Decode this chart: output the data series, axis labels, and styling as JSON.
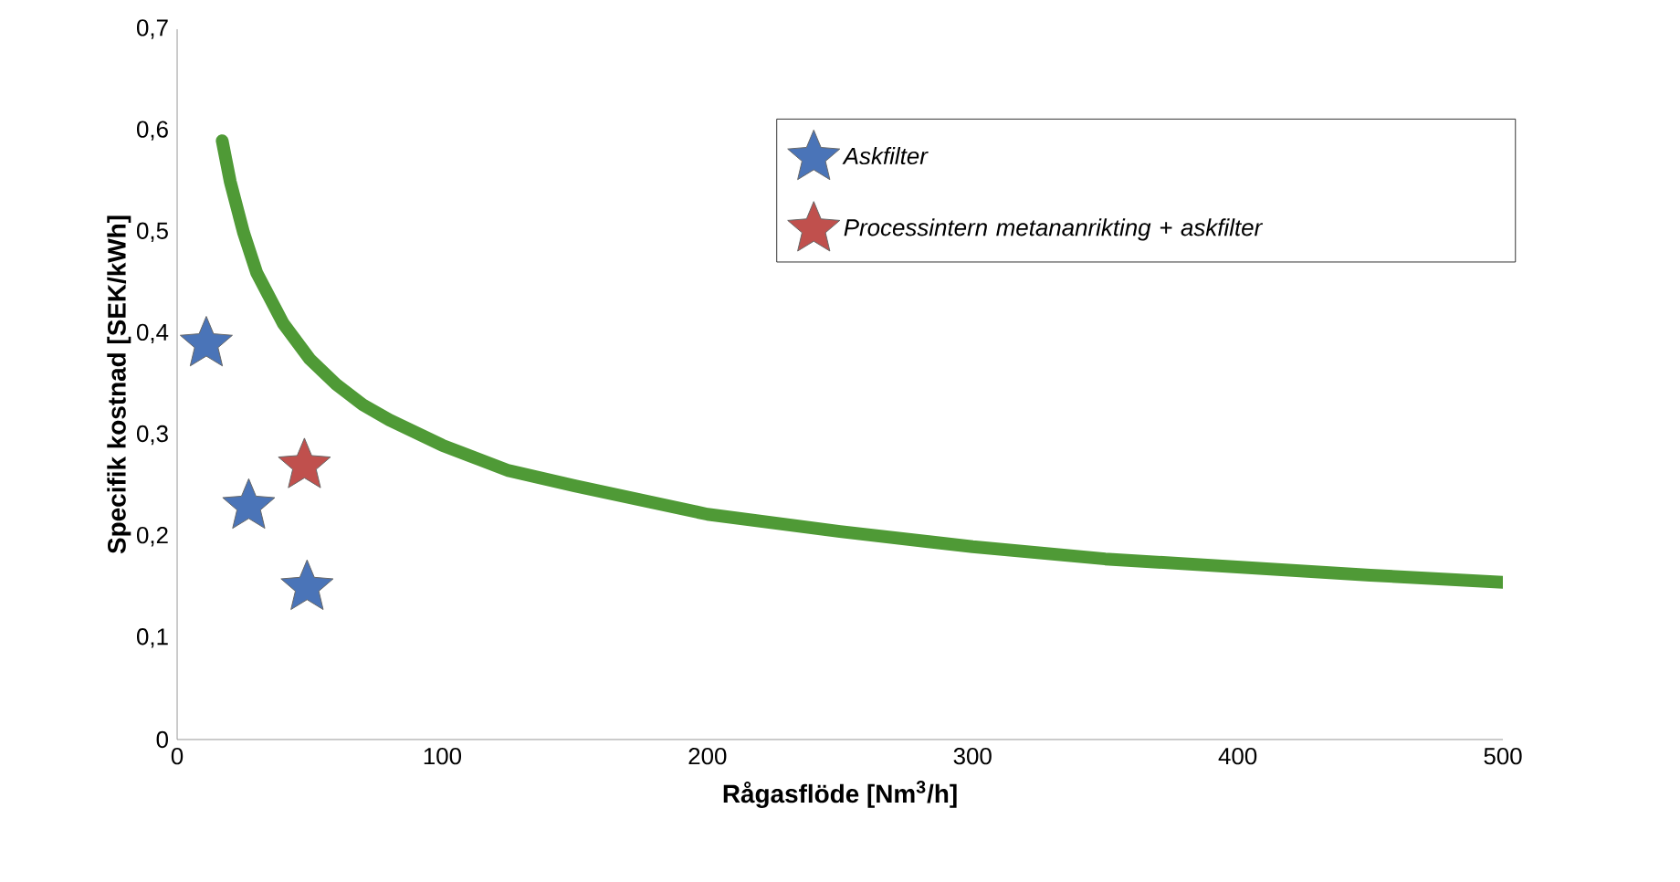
{
  "chart_data": {
    "type": "scatter",
    "xlabel": "Rågasflöde [Nm$^{3}$/h]",
    "ylabel": "Specifik kostnad [SEK/kWh]",
    "xlim": [
      0,
      500
    ],
    "xticks": [
      0,
      100,
      200,
      300,
      400,
      500
    ],
    "ylim": [
      0,
      0.7
    ],
    "yticks": [
      0,
      {
        "value": 0.1,
        "label": "0,1"
      },
      {
        "value": 0.2,
        "label": "0,2"
      },
      {
        "value": 0.3,
        "label": "0,3"
      },
      {
        "value": 0.4,
        "label": "0,4"
      },
      {
        "value": 0.5,
        "label": "0,5"
      },
      {
        "value": 0.6,
        "label": "0,6"
      },
      {
        "value": 0.7,
        "label": "0,7"
      }
    ],
    "grid": false,
    "legend": "top right",
    "marker": "star",
    "series": [
      {
        "type": "line",
        "marker": "none",
        "color": "#4f9a36",
        "x": [
          17,
          20,
          25,
          30,
          40,
          50,
          60,
          70,
          80,
          100,
          125,
          150,
          200,
          250,
          300,
          350,
          400,
          450,
          500
        ],
        "values": [
          0.59,
          0.55,
          0.5,
          0.46,
          0.41,
          0.375,
          0.35,
          0.33,
          0.315,
          0.29,
          0.265,
          0.25,
          0.222,
          0.205,
          0.19,
          0.178,
          0.17,
          0.162,
          0.155
        ]
      },
      {
        "name": "*Askfilter*",
        "color": "#4a74b8",
        "x": [
          11,
          27,
          49
        ],
        "values": [
          0.39,
          0.23,
          0.15
        ]
      },
      {
        "name": "*Processintern metananrikting + askfilter*",
        "color": "#c0504d",
        "x": [
          48
        ],
        "values": [
          0.27
        ]
      }
    ]
  }
}
